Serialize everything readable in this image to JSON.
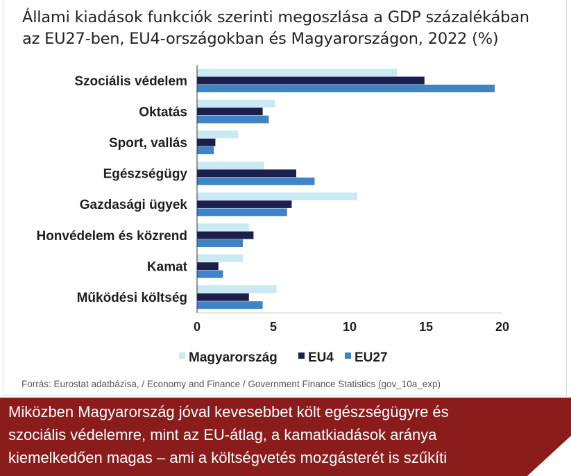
{
  "title_line1": "Állami kiadások funkciók szerinti megoszlása a GDP százalékában",
  "title_line2": "az EU27-ben, EU4-országokban és Magyarországon, 2022 (%)",
  "source": "Forrás: Eurostat adatbázisa, / Economy and Finance / Government Finance Statistics (gov_10a_exp)",
  "footer_line1": "Miközben Magyarország jóval kevesebbet költ egészségügyre és",
  "footer_line2": "szociális védelemre, mint az EU-átlag, a kamatkiadások aránya",
  "footer_line3": "kiemelkedően magas – ami a költségvetés mozgásterét is szűkíti",
  "colors": {
    "footer_bg": "#8b1c1c",
    "axis": "#333333"
  },
  "chart_data": {
    "type": "bar",
    "orientation": "horizontal",
    "categories": [
      "Szociális védelem",
      "Oktatás",
      "Sport, vallás",
      "Egészségügy",
      "Gazdasági ügyek",
      "Honvédelem és közrend",
      "Kamat",
      "Működési költség"
    ],
    "series": [
      {
        "name": "Magyarország",
        "color": "#c9e9f3",
        "values": [
          13.1,
          5.1,
          2.7,
          4.4,
          10.5,
          3.4,
          3.0,
          5.2
        ]
      },
      {
        "name": "EU4",
        "color": "#1c1f4d",
        "values": [
          14.9,
          4.3,
          1.2,
          6.5,
          6.2,
          3.7,
          1.4,
          3.4
        ]
      },
      {
        "name": "EU27",
        "color": "#3f84c6",
        "values": [
          19.5,
          4.7,
          1.1,
          7.7,
          5.9,
          3.0,
          1.7,
          4.3
        ]
      }
    ],
    "xlim": [
      0,
      20
    ],
    "xticks": [
      "0",
      "5",
      "10",
      "15",
      "20"
    ],
    "grid": false,
    "legend": "bottom"
  }
}
